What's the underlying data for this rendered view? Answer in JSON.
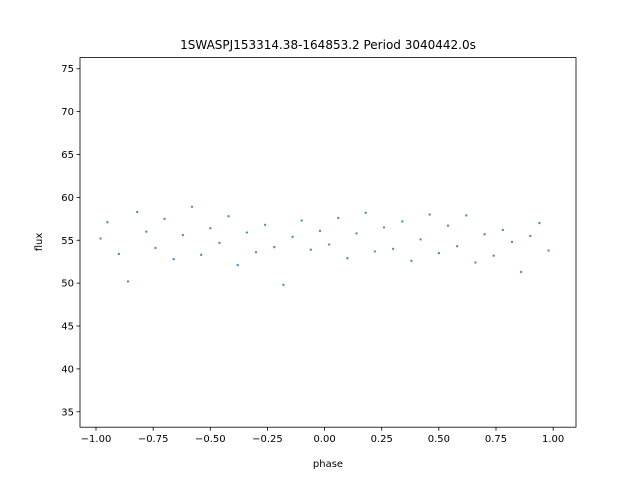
{
  "chart_data": {
    "type": "scatter",
    "title": "1SWASPJ153314.38-164853.2 Period 3040442.0s",
    "xlabel": "phase",
    "ylabel": "flux",
    "xlim": [
      -1.07,
      1.1
    ],
    "ylim": [
      33.2,
      76.3
    ],
    "x_ticks": [
      -1.0,
      -0.75,
      -0.5,
      -0.25,
      0.0,
      0.25,
      0.5,
      0.75,
      1.0
    ],
    "x_tick_labels": [
      "−1.00",
      "−0.75",
      "−0.50",
      "−0.25",
      "0.00",
      "0.25",
      "0.50",
      "0.75",
      "1.00"
    ],
    "y_ticks": [
      35,
      40,
      45,
      50,
      55,
      60,
      65,
      70,
      75
    ],
    "y_tick_labels": [
      "35",
      "40",
      "45",
      "50",
      "55",
      "60",
      "65",
      "70",
      "75"
    ],
    "grid": false,
    "marker_color": "#1f77b4",
    "series": [
      {
        "x": [
          -0.98,
          -0.95,
          -0.9,
          -0.86,
          -0.82,
          -0.78,
          -0.74,
          -0.7,
          -0.66,
          -0.62,
          -0.58,
          -0.54,
          -0.5,
          -0.46,
          -0.42,
          -0.38,
          -0.34,
          -0.3,
          -0.26,
          -0.22,
          -0.18,
          -0.14,
          -0.1,
          -0.06,
          -0.02,
          0.02,
          0.06,
          0.1,
          0.14,
          0.18,
          0.22,
          0.26,
          0.3,
          0.34,
          0.38,
          0.42,
          0.46,
          0.5,
          0.54,
          0.58,
          0.62,
          0.66,
          0.7,
          0.74,
          0.78,
          0.82,
          0.86,
          0.9,
          0.94,
          0.98
        ],
        "y": [
          55.2,
          57.1,
          53.4,
          50.2,
          58.3,
          56.0,
          54.1,
          57.5,
          52.8,
          55.6,
          58.9,
          53.3,
          56.4,
          54.7,
          57.8,
          52.1,
          55.9,
          53.6,
          56.8,
          54.2,
          49.8,
          55.4,
          57.3,
          53.9,
          56.1,
          54.5,
          57.6,
          52.9,
          55.8,
          58.2,
          53.7,
          56.5,
          54.0,
          57.2,
          52.6,
          55.1,
          58.0,
          53.5,
          56.7,
          54.3,
          57.9,
          52.4,
          55.7,
          53.2,
          56.2,
          54.8,
          51.3,
          55.5,
          57.0,
          53.8
        ]
      }
    ]
  }
}
